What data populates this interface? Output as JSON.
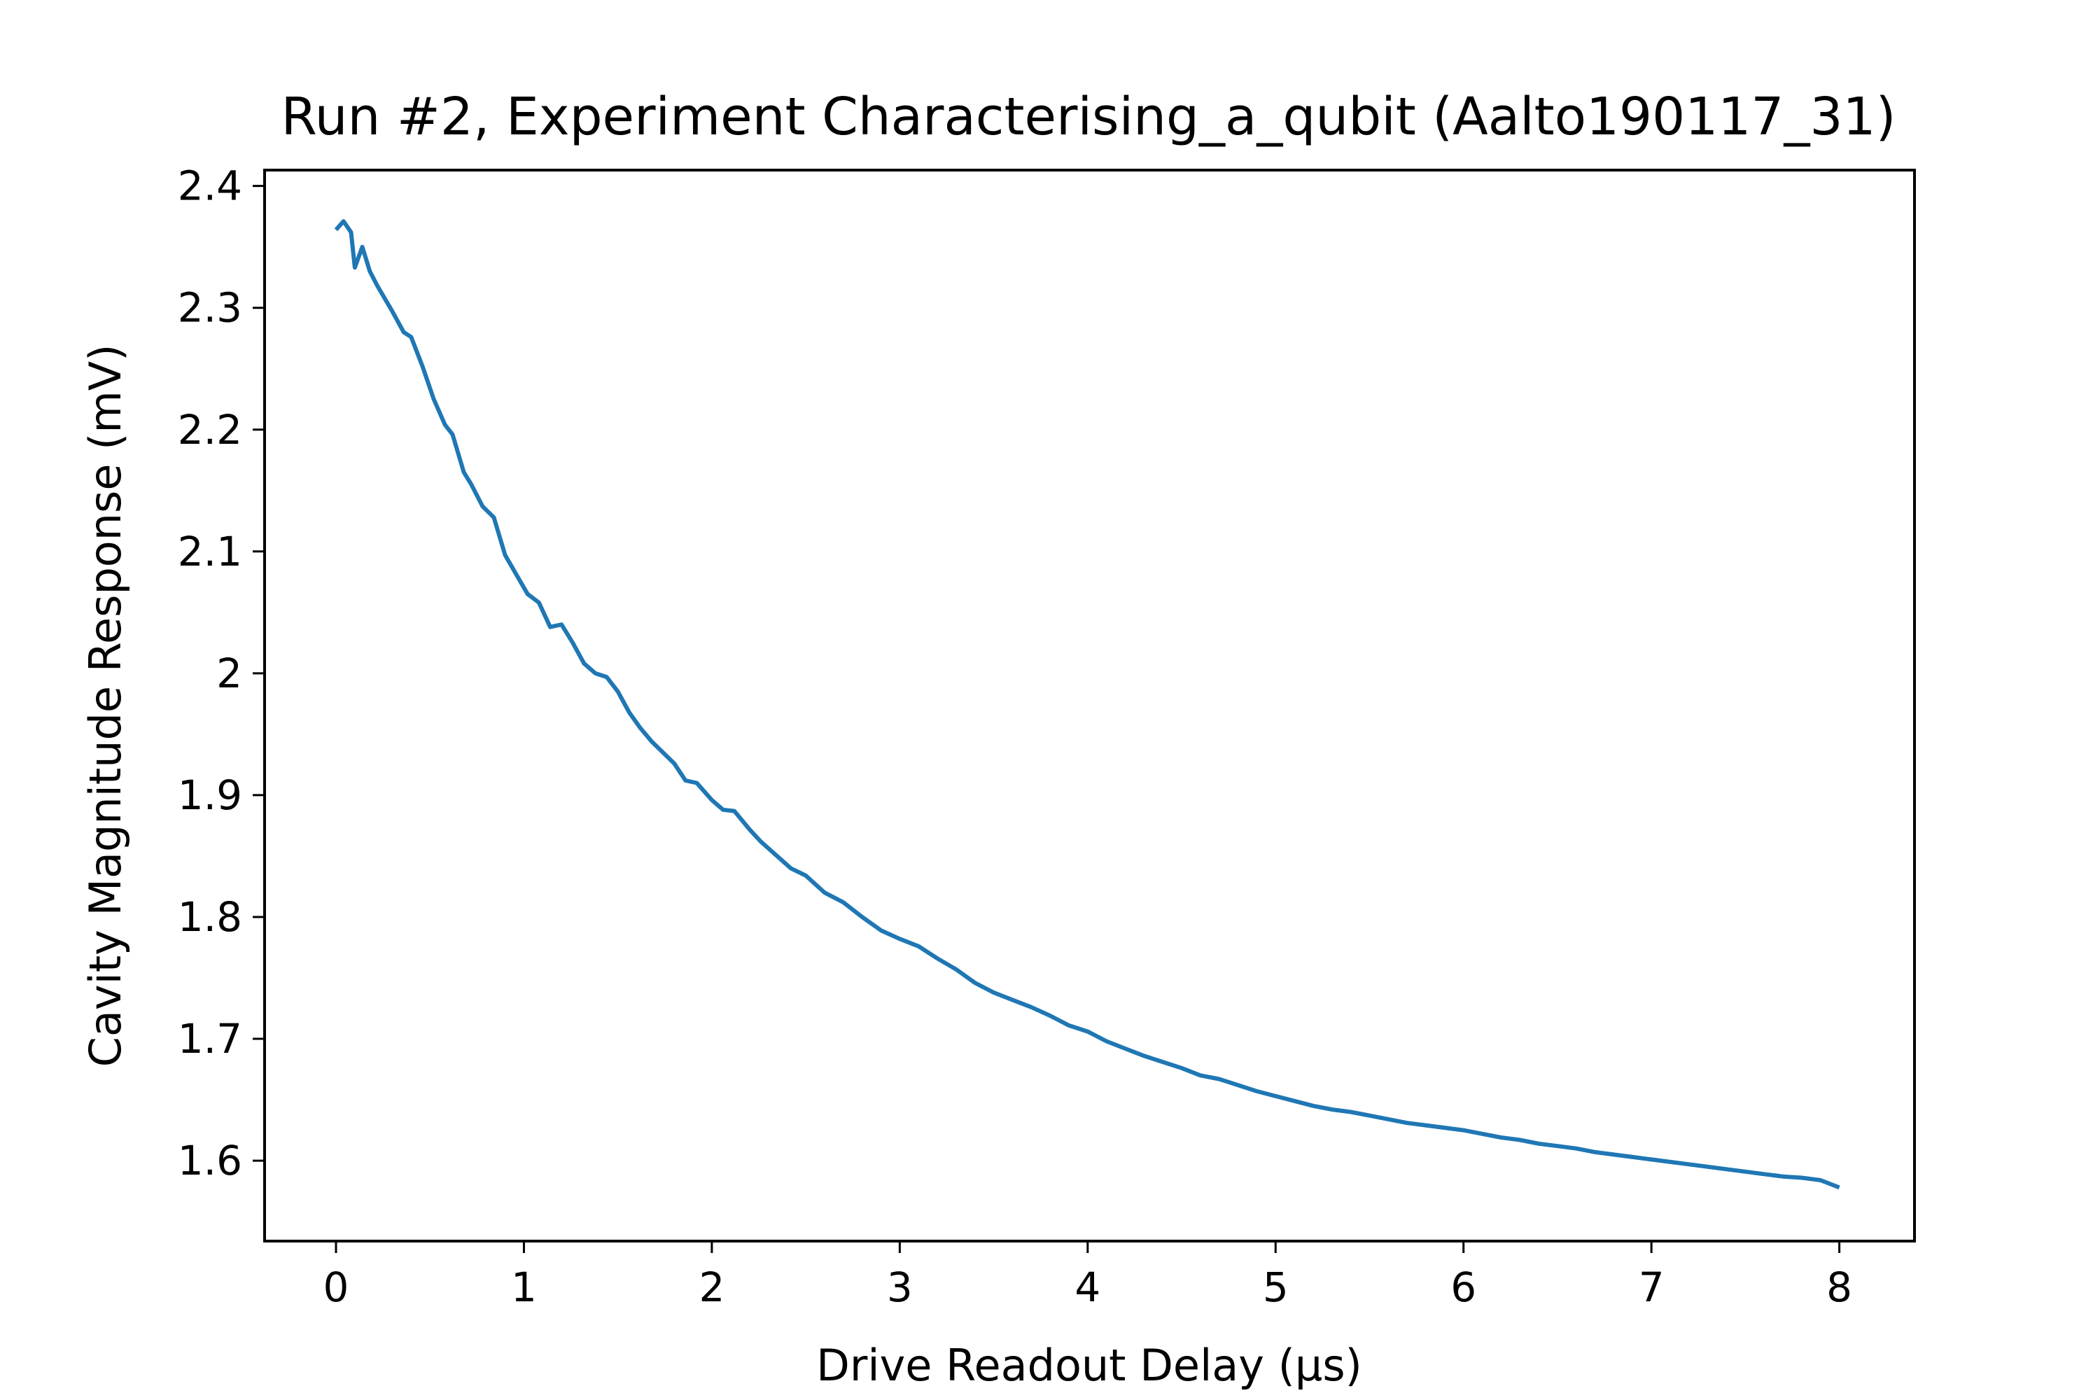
{
  "chart_data": {
    "type": "line",
    "title": "Run #2, Experiment Characterising_a_qubit (Aalto190117_31)",
    "xlabel": "Drive Readout Delay (µs)",
    "ylabel": "Cavity Magnitude Response (mV)",
    "xlim": [
      -0.38,
      8.4
    ],
    "ylim": [
      1.534,
      2.413
    ],
    "xticks": [
      0,
      1,
      2,
      3,
      4,
      5,
      6,
      7,
      8
    ],
    "xtick_labels": [
      "0",
      "1",
      "2",
      "3",
      "4",
      "5",
      "6",
      "7",
      "8"
    ],
    "yticks": [
      1.6,
      1.7,
      1.8,
      1.9,
      2.0,
      2.1,
      2.2,
      2.3,
      2.4
    ],
    "ytick_labels": [
      "1.6",
      "1.7",
      "1.8",
      "1.9",
      "2",
      "2.1",
      "2.2",
      "2.3",
      "2.4"
    ],
    "grid": false,
    "legend": "none",
    "line_color": "#1f77b4",
    "series": [
      {
        "x": [
          0.0,
          0.04,
          0.08,
          0.1,
          0.14,
          0.18,
          0.22,
          0.3,
          0.36,
          0.4,
          0.46,
          0.52,
          0.58,
          0.62,
          0.68,
          0.72,
          0.78,
          0.84,
          0.9,
          0.96,
          1.02,
          1.08,
          1.14,
          1.2,
          1.26,
          1.32,
          1.38,
          1.44,
          1.5,
          1.56,
          1.62,
          1.68,
          1.74,
          1.8,
          1.86,
          1.92,
          2.0,
          2.06,
          2.12,
          2.2,
          2.26,
          2.34,
          2.42,
          2.5,
          2.6,
          2.7,
          2.8,
          2.9,
          3.0,
          3.1,
          3.2,
          3.3,
          3.4,
          3.5,
          3.6,
          3.7,
          3.8,
          3.9,
          4.0,
          4.1,
          4.2,
          4.3,
          4.4,
          4.5,
          4.6,
          4.7,
          4.8,
          4.9,
          5.0,
          5.1,
          5.2,
          5.3,
          5.4,
          5.5,
          5.6,
          5.7,
          5.8,
          5.9,
          6.0,
          6.1,
          6.2,
          6.3,
          6.4,
          6.5,
          6.6,
          6.7,
          6.8,
          6.9,
          7.0,
          7.1,
          7.2,
          7.3,
          7.4,
          7.5,
          7.6,
          7.7,
          7.8,
          7.9,
          8.0
        ],
        "y": [
          2.364,
          2.371,
          2.362,
          2.333,
          2.35,
          2.33,
          2.318,
          2.297,
          2.28,
          2.276,
          2.252,
          2.225,
          2.204,
          2.196,
          2.165,
          2.155,
          2.137,
          2.128,
          2.097,
          2.081,
          2.065,
          2.058,
          2.038,
          2.04,
          2.025,
          2.008,
          2.0,
          1.997,
          1.985,
          1.968,
          1.955,
          1.944,
          1.935,
          1.926,
          1.912,
          1.91,
          1.896,
          1.888,
          1.887,
          1.872,
          1.862,
          1.851,
          1.84,
          1.834,
          1.82,
          1.812,
          1.8,
          1.789,
          1.782,
          1.776,
          1.766,
          1.757,
          1.746,
          1.738,
          1.732,
          1.726,
          1.719,
          1.711,
          1.706,
          1.698,
          1.692,
          1.686,
          1.681,
          1.676,
          1.67,
          1.667,
          1.662,
          1.657,
          1.653,
          1.649,
          1.645,
          1.642,
          1.64,
          1.637,
          1.634,
          1.631,
          1.629,
          1.627,
          1.625,
          1.622,
          1.619,
          1.617,
          1.614,
          1.612,
          1.61,
          1.607,
          1.605,
          1.603,
          1.601,
          1.599,
          1.597,
          1.595,
          1.593,
          1.591,
          1.589,
          1.587,
          1.586,
          1.584,
          1.578
        ]
      }
    ]
  }
}
